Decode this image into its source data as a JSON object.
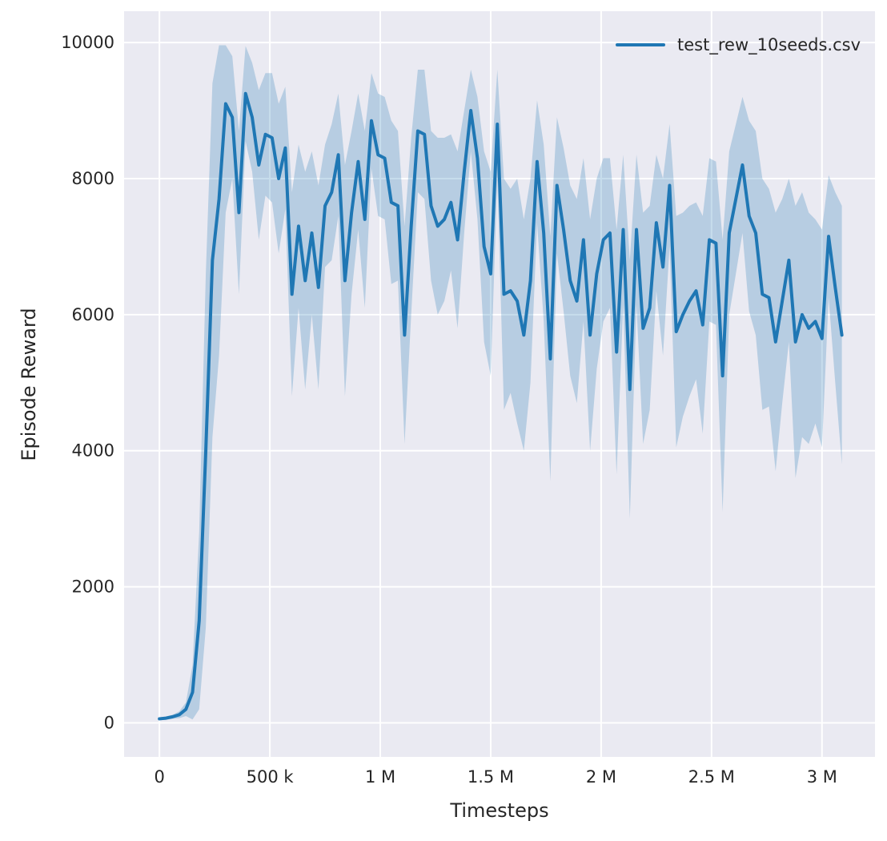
{
  "figure": {
    "background": "#ffffff",
    "axes_background": "#eaeaf2",
    "grid_color": "#ffffff",
    "text_color": "#262626"
  },
  "chart_data": {
    "type": "line",
    "title": "",
    "xlabel": "Timesteps",
    "ylabel": "Episode Reward",
    "grid": true,
    "xlim": [
      -160000,
      3240000
    ],
    "ylim": [
      -500,
      10460
    ],
    "x_ticks": [
      {
        "value": 0,
        "label": "0"
      },
      {
        "value": 500000,
        "label": "500 k"
      },
      {
        "value": 1000000,
        "label": "1 M"
      },
      {
        "value": 1500000,
        "label": "1.5 M"
      },
      {
        "value": 2000000,
        "label": "2 M"
      },
      {
        "value": 2500000,
        "label": "2.5 M"
      },
      {
        "value": 3000000,
        "label": "3 M"
      }
    ],
    "y_ticks": [
      {
        "value": 0,
        "label": "0"
      },
      {
        "value": 2000,
        "label": "2000"
      },
      {
        "value": 4000,
        "label": "4000"
      },
      {
        "value": 6000,
        "label": "6000"
      },
      {
        "value": 8000,
        "label": "8000"
      },
      {
        "value": 10000,
        "label": "10000"
      }
    ],
    "legend": {
      "position": "upper right",
      "entries": [
        {
          "label": "test_rew_10seeds.csv",
          "color": "#1f77b4"
        }
      ]
    },
    "series": [
      {
        "name": "test_rew_10seeds.csv",
        "color": "#1f77b4",
        "band_color": "rgba(31,119,180,0.25)",
        "band_cap": 9960,
        "x": [
          0,
          30000,
          60000,
          90000,
          120000,
          150000,
          180000,
          210000,
          240000,
          270000,
          300000,
          330000,
          360000,
          390000,
          420000,
          450000,
          480000,
          510000,
          540000,
          570000,
          600000,
          630000,
          660000,
          690000,
          720000,
          750000,
          780000,
          810000,
          840000,
          870000,
          900000,
          930000,
          960000,
          990000,
          1020000,
          1050000,
          1080000,
          1110000,
          1140000,
          1170000,
          1200000,
          1230000,
          1260000,
          1290000,
          1320000,
          1350000,
          1380000,
          1410000,
          1440000,
          1470000,
          1500000,
          1530000,
          1560000,
          1590000,
          1620000,
          1650000,
          1680000,
          1710000,
          1740000,
          1770000,
          1800000,
          1830000,
          1860000,
          1890000,
          1920000,
          1950000,
          1980000,
          2010000,
          2040000,
          2070000,
          2100000,
          2130000,
          2160000,
          2190000,
          2220000,
          2250000,
          2280000,
          2310000,
          2340000,
          2370000,
          2400000,
          2430000,
          2460000,
          2490000,
          2520000,
          2550000,
          2580000,
          2610000,
          2640000,
          2670000,
          2700000,
          2730000,
          2760000,
          2790000,
          2820000,
          2850000,
          2880000,
          2910000,
          2940000,
          2970000,
          3000000,
          3030000,
          3060000,
          3090000
        ],
        "mean": [
          60,
          70,
          90,
          120,
          200,
          450,
          1500,
          4000,
          6800,
          7700,
          9100,
          8900,
          7500,
          9250,
          8900,
          8200,
          8650,
          8600,
          8000,
          8450,
          6300,
          7300,
          6500,
          7200,
          6400,
          7600,
          7800,
          8350,
          6500,
          7500,
          8250,
          7400,
          8850,
          8350,
          8300,
          7650,
          7600,
          5700,
          7300,
          8700,
          8650,
          7600,
          7300,
          7400,
          7650,
          7100,
          8100,
          9000,
          8300,
          7000,
          6600,
          8800,
          6300,
          6350,
          6200,
          5700,
          6500,
          8250,
          7200,
          5350,
          7900,
          7250,
          6500,
          6200,
          7100,
          5700,
          6600,
          7100,
          7200,
          5450,
          7250,
          4900,
          7250,
          5800,
          6100,
          7350,
          6700,
          7900,
          5750,
          6000,
          6200,
          6350,
          5850,
          7100,
          7050,
          5100,
          7200,
          7700,
          8200,
          7450,
          7200,
          6300,
          6250,
          5600,
          6200,
          6800,
          5600,
          6000,
          5800,
          5900,
          5650,
          7150,
          6400,
          5700
        ],
        "spread": [
          20,
          25,
          30,
          50,
          100,
          400,
          1300,
          2600,
          2600,
          2300,
          1600,
          900,
          1200,
          700,
          800,
          1100,
          900,
          950,
          1100,
          900,
          1500,
          1200,
          1600,
          1200,
          1500,
          900,
          1000,
          900,
          1700,
          1200,
          1000,
          1300,
          700,
          900,
          900,
          1200,
          1100,
          1600,
          1300,
          900,
          950,
          1100,
          1300,
          1200,
          1000,
          1300,
          900,
          600,
          900,
          1400,
          1500,
          800,
          1700,
          1500,
          1800,
          1700,
          1500,
          900,
          1300,
          1800,
          1000,
          1200,
          1400,
          1500,
          1200,
          1700,
          1400,
          1200,
          1100,
          1800,
          1100,
          1900,
          1100,
          1700,
          1500,
          1000,
          1300,
          900,
          1700,
          1500,
          1400,
          1300,
          1600,
          1200,
          1200,
          2000,
          1200,
          1100,
          1000,
          1400,
          1500,
          1700,
          1600,
          1900,
          1500,
          1200,
          2000,
          1800,
          1700,
          1500,
          1600,
          900,
          1400,
          1900
        ]
      }
    ]
  }
}
